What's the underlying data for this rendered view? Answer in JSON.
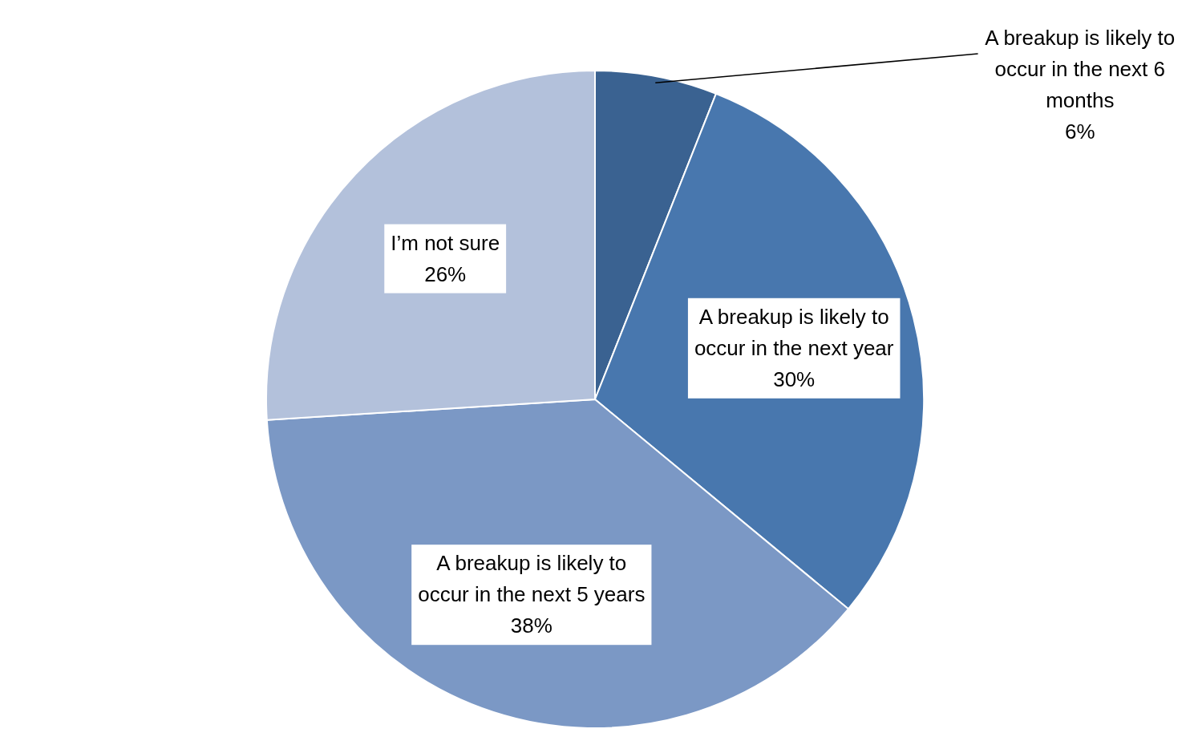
{
  "chart_data": {
    "type": "pie",
    "categories": [
      "A breakup is likely to occur in the next 6 months",
      "A breakup is likely to occur in the next year",
      "A breakup is likely to occur in the next 5 years",
      "I’m not sure"
    ],
    "values": [
      6,
      30,
      38,
      26
    ],
    "colors": [
      "#3a6291",
      "#4877ae",
      "#7b98c5",
      "#b3c1db"
    ],
    "value_labels": [
      "6%",
      "30%",
      "38%",
      "26%"
    ]
  }
}
